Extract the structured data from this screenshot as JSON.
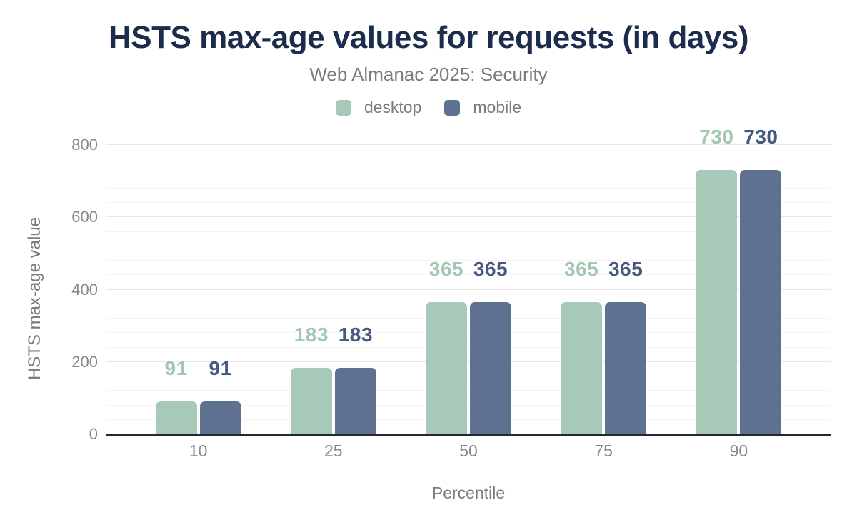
{
  "colors": {
    "title_color": "#1c2c4c",
    "muted_color": "#7b7b80",
    "tick_color": "#87878f",
    "axis_line_color": "#26262c",
    "grid_major": "#e7e7ea",
    "grid_minor": "#f4f4f6"
  },
  "chart_data": {
    "type": "bar",
    "title": "HSTS max-age values for requests (in days)",
    "subtitle": "Web Almanac 2025: Security",
    "categories": [
      "10",
      "25",
      "50",
      "75",
      "90"
    ],
    "series": [
      {
        "name": "desktop",
        "color": "#a6c9b8",
        "label_color": "#a2c7b2",
        "values": [
          91,
          183,
          365,
          365,
          730
        ]
      },
      {
        "name": "mobile",
        "color": "#5e7190",
        "label_color": "#475a7d",
        "values": [
          91,
          183,
          365,
          365,
          730
        ]
      }
    ],
    "xlabel": "Percentile",
    "ylabel": "HSTS max-age value",
    "ylim": [
      0,
      800
    ],
    "yticks": [
      0,
      200,
      400,
      600,
      800
    ],
    "minor_tick_interval": 40,
    "grid": true,
    "legend_position": "top"
  }
}
